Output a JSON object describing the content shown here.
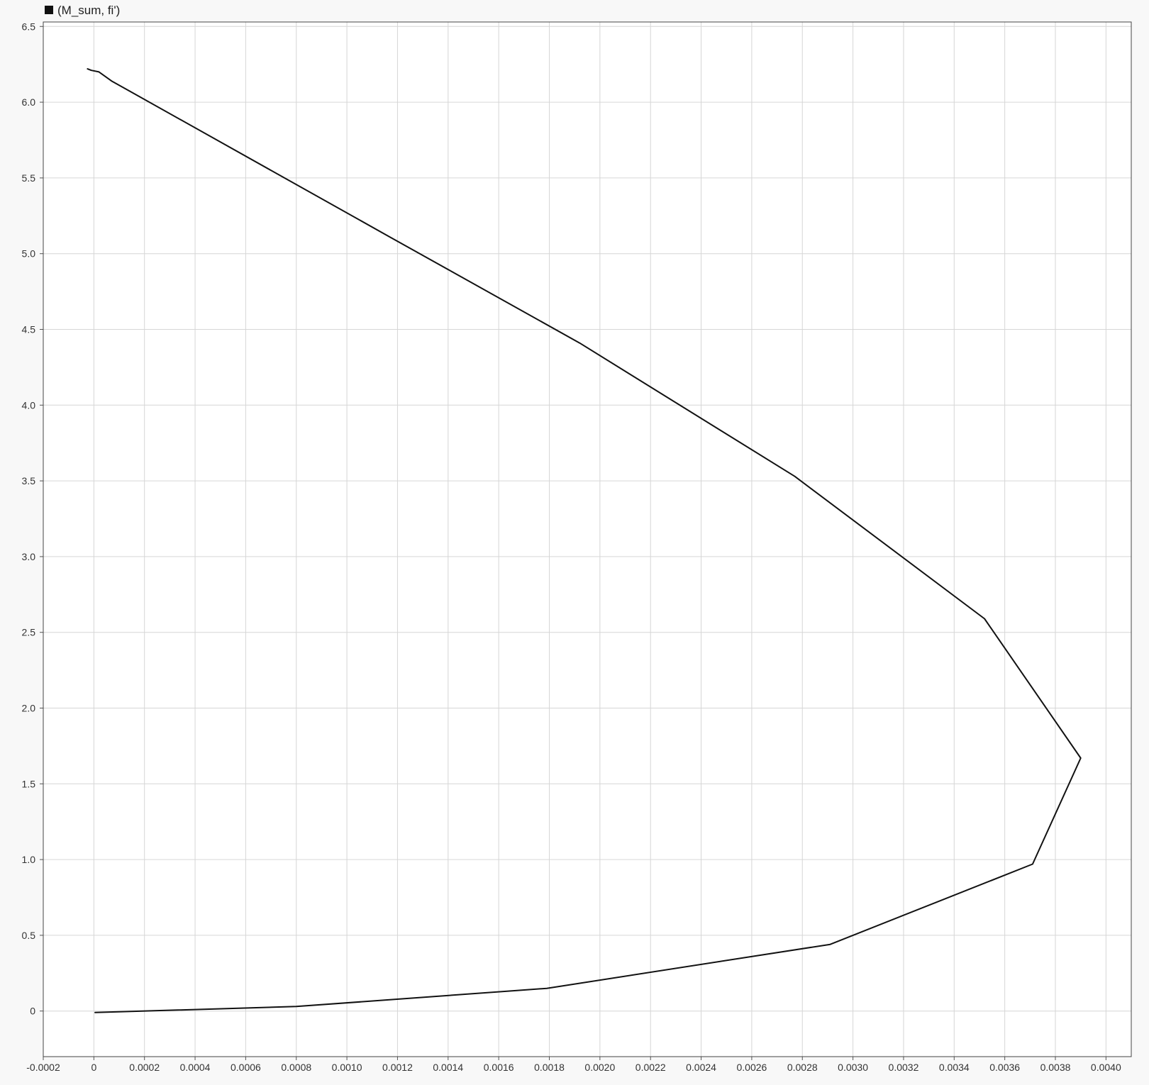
{
  "chart_data": {
    "type": "line",
    "title": "",
    "xlabel": "",
    "ylabel": "",
    "xlim": [
      -0.0002,
      0.0041
    ],
    "ylim": [
      -0.32,
      6.52
    ],
    "grid": true,
    "legend_position": "top-left",
    "x_ticks": [
      {
        "value": -0.0002,
        "label": "-0.0002"
      },
      {
        "value": 0,
        "label": "0"
      },
      {
        "value": 0.0002,
        "label": "0.0002"
      },
      {
        "value": 0.0004,
        "label": "0.0004"
      },
      {
        "value": 0.0006,
        "label": "0.0006"
      },
      {
        "value": 0.0008,
        "label": "0.0008"
      },
      {
        "value": 0.001,
        "label": "0.0010"
      },
      {
        "value": 0.0012,
        "label": "0.0012"
      },
      {
        "value": 0.0014,
        "label": "0.0014"
      },
      {
        "value": 0.0016,
        "label": "0.0016"
      },
      {
        "value": 0.0018,
        "label": "0.0018"
      },
      {
        "value": 0.002,
        "label": "0.0020"
      },
      {
        "value": 0.0022,
        "label": "0.0022"
      },
      {
        "value": 0.0024,
        "label": "0.0024"
      },
      {
        "value": 0.0026,
        "label": "0.0026"
      },
      {
        "value": 0.0028,
        "label": "0.0028"
      },
      {
        "value": 0.003,
        "label": "0.0030"
      },
      {
        "value": 0.0032,
        "label": "0.0032"
      },
      {
        "value": 0.0034,
        "label": "0.0034"
      },
      {
        "value": 0.0036,
        "label": "0.0036"
      },
      {
        "value": 0.0038,
        "label": "0.0038"
      },
      {
        "value": 0.004,
        "label": "0.0040"
      }
    ],
    "y_ticks": [
      {
        "value": 0,
        "label": "0"
      },
      {
        "value": 0.5,
        "label": "0.5"
      },
      {
        "value": 1.0,
        "label": "1.0"
      },
      {
        "value": 1.5,
        "label": "1.5"
      },
      {
        "value": 2.0,
        "label": "2.0"
      },
      {
        "value": 2.5,
        "label": "2.5"
      },
      {
        "value": 3.0,
        "label": "3.0"
      },
      {
        "value": 3.5,
        "label": "3.5"
      },
      {
        "value": 4.0,
        "label": "4.0"
      },
      {
        "value": 4.5,
        "label": "4.5"
      },
      {
        "value": 5.0,
        "label": "5.0"
      },
      {
        "value": 5.5,
        "label": "5.5"
      },
      {
        "value": 6.0,
        "label": "6.0"
      },
      {
        "value": 6.5,
        "label": "6.5"
      }
    ],
    "series": [
      {
        "name": "(M_sum, fi')",
        "color": "#111111",
        "x": [
          5e-06,
          0.0008,
          0.00179,
          0.00291,
          0.00371,
          0.0039,
          0.00352,
          0.00277,
          0.00192,
          0.00117,
          7e-05,
          2e-05,
          -1e-05,
          -2.5e-05
        ],
        "y": [
          -0.01,
          0.03,
          0.15,
          0.44,
          0.97,
          1.67,
          2.59,
          3.53,
          4.41,
          5.11,
          6.14,
          6.2,
          6.21,
          6.22
        ]
      }
    ]
  }
}
